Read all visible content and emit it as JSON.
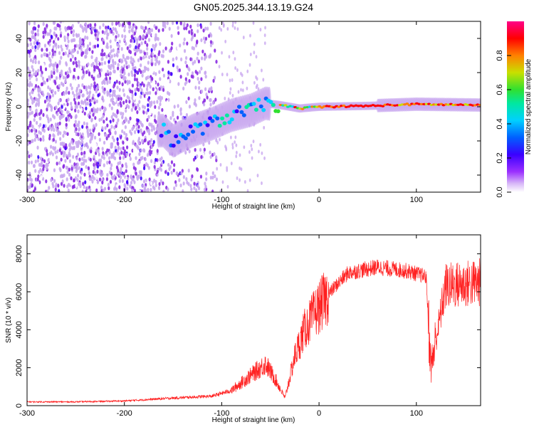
{
  "title": "GN05.2025.344.13.19.G24",
  "chart_data": [
    {
      "type": "heatmap",
      "name": "spectrogram",
      "xlabel": "Height of straight line (km)",
      "ylabel": "Frequency (Hz)",
      "xlim": [
        -300,
        166
      ],
      "ylim": [
        -50,
        50
      ],
      "xticks": [
        -300,
        -200,
        -100,
        0,
        100
      ],
      "yticks": [
        -40,
        -20,
        0,
        20,
        40
      ],
      "colorbar": {
        "label": "Normalized spectral amplitude",
        "range": [
          0,
          1
        ],
        "ticks": [
          "0.0",
          "0.2",
          "0.4",
          "0.6",
          "0.8"
        ],
        "tick_values": [
          0,
          0.2,
          0.4,
          0.6,
          0.8
        ],
        "colors": [
          "#ffffff",
          "#c9a8f0",
          "#8a2be2",
          "#3a00ff",
          "#0060ff",
          "#00d0ff",
          "#00e8a0",
          "#30e030",
          "#c8e000",
          "#ff8000",
          "#ff0000",
          "#ff0088"
        ]
      },
      "ridge": [
        {
          "x": -160,
          "f": -14
        },
        {
          "x": -150,
          "f": -20
        },
        {
          "x": -130,
          "f": -14
        },
        {
          "x": -110,
          "f": -10
        },
        {
          "x": -90,
          "f": -5
        },
        {
          "x": -70,
          "f": -2
        },
        {
          "x": -55,
          "f": 2
        },
        {
          "x": -40,
          "f": 1
        },
        {
          "x": -20,
          "f": -1
        },
        {
          "x": 0,
          "f": 0
        },
        {
          "x": 50,
          "f": 0.5
        },
        {
          "x": 100,
          "f": 1.5
        },
        {
          "x": 166,
          "f": 1
        }
      ]
    },
    {
      "type": "line",
      "name": "snr",
      "xlabel": "Height of straight line (km)",
      "ylabel": "SNR (10 * v/v)",
      "xlim": [
        -300,
        166
      ],
      "ylim": [
        0,
        9000
      ],
      "xticks": [
        -300,
        -200,
        -100,
        0,
        100
      ],
      "yticks": [
        0,
        2000,
        4000,
        6000,
        8000
      ],
      "color": "#ff2020",
      "envelope": [
        {
          "x": -300,
          "y": 200
        },
        {
          "x": -250,
          "y": 200
        },
        {
          "x": -200,
          "y": 250
        },
        {
          "x": -150,
          "y": 400
        },
        {
          "x": -110,
          "y": 500
        },
        {
          "x": -90,
          "y": 800
        },
        {
          "x": -70,
          "y": 1600
        },
        {
          "x": -55,
          "y": 2200
        },
        {
          "x": -45,
          "y": 1400
        },
        {
          "x": -35,
          "y": 400
        },
        {
          "x": -25,
          "y": 2600
        },
        {
          "x": -15,
          "y": 4000
        },
        {
          "x": 0,
          "y": 5200
        },
        {
          "x": 15,
          "y": 6200
        },
        {
          "x": 30,
          "y": 7000
        },
        {
          "x": 60,
          "y": 7300
        },
        {
          "x": 90,
          "y": 7100
        },
        {
          "x": 110,
          "y": 6800
        },
        {
          "x": 115,
          "y": 2000
        },
        {
          "x": 130,
          "y": 6300
        },
        {
          "x": 166,
          "y": 6500
        }
      ]
    }
  ]
}
